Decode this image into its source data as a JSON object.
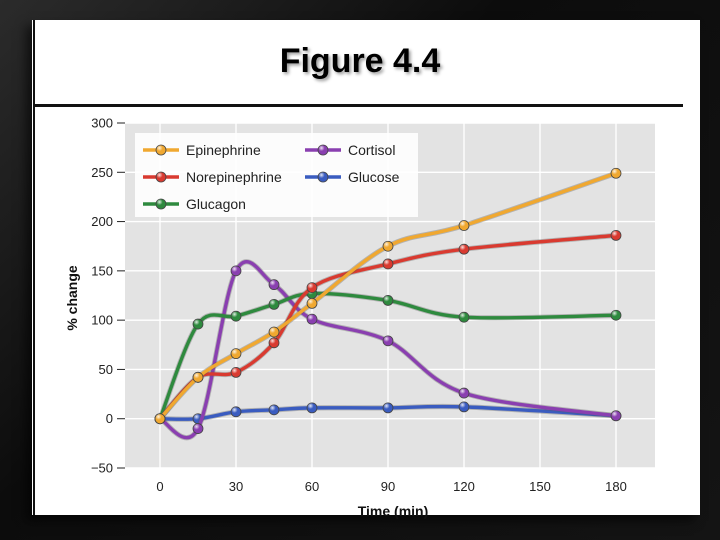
{
  "slide": {
    "title": "Figure 4.4"
  },
  "chart_data": {
    "type": "line",
    "title": "",
    "xlabel": "Time (min)",
    "ylabel": "% change",
    "xlim": [
      -10,
      195
    ],
    "ylim": [
      -50,
      300
    ],
    "x_ticks": [
      0,
      30,
      60,
      90,
      120,
      150,
      180
    ],
    "y_ticks": [
      -50,
      0,
      50,
      100,
      150,
      200,
      250,
      300
    ],
    "y_tick_labels": [
      "−50",
      "0",
      "50",
      "100",
      "150",
      "200",
      "250",
      "300"
    ],
    "grid": true,
    "legend_position": "top-left",
    "plot_background": "#e3e3e3",
    "series": [
      {
        "name": "Epinephrine",
        "color": "#f0a830",
        "x": [
          0,
          15,
          30,
          45,
          60,
          90,
          120,
          180
        ],
        "y": [
          0,
          42,
          66,
          88,
          117,
          175,
          196,
          249
        ]
      },
      {
        "name": "Norepinephrine",
        "color": "#d93a30",
        "x": [
          0,
          15,
          30,
          45,
          60,
          90,
          120,
          180
        ],
        "y": [
          0,
          42,
          47,
          77,
          133,
          157,
          172,
          186
        ]
      },
      {
        "name": "Glucagon",
        "color": "#2e8a3e",
        "x": [
          0,
          15,
          30,
          45,
          60,
          90,
          120,
          180
        ],
        "y": [
          0,
          96,
          104,
          116,
          127,
          120,
          103,
          105
        ]
      },
      {
        "name": "Cortisol",
        "color": "#8a3fb0",
        "x": [
          0,
          15,
          30,
          45,
          60,
          90,
          120,
          180
        ],
        "y": [
          0,
          -10,
          150,
          136,
          101,
          79,
          26,
          3
        ]
      },
      {
        "name": "Glucose",
        "color": "#3a5cc0",
        "x": [
          0,
          15,
          30,
          45,
          60,
          90,
          120,
          180
        ],
        "y": [
          0,
          0,
          7,
          9,
          11,
          11,
          12,
          3
        ]
      }
    ],
    "legend_order": [
      "Epinephrine",
      "Cortisol",
      "Norepinephrine",
      "Glucose",
      "Glucagon"
    ]
  }
}
